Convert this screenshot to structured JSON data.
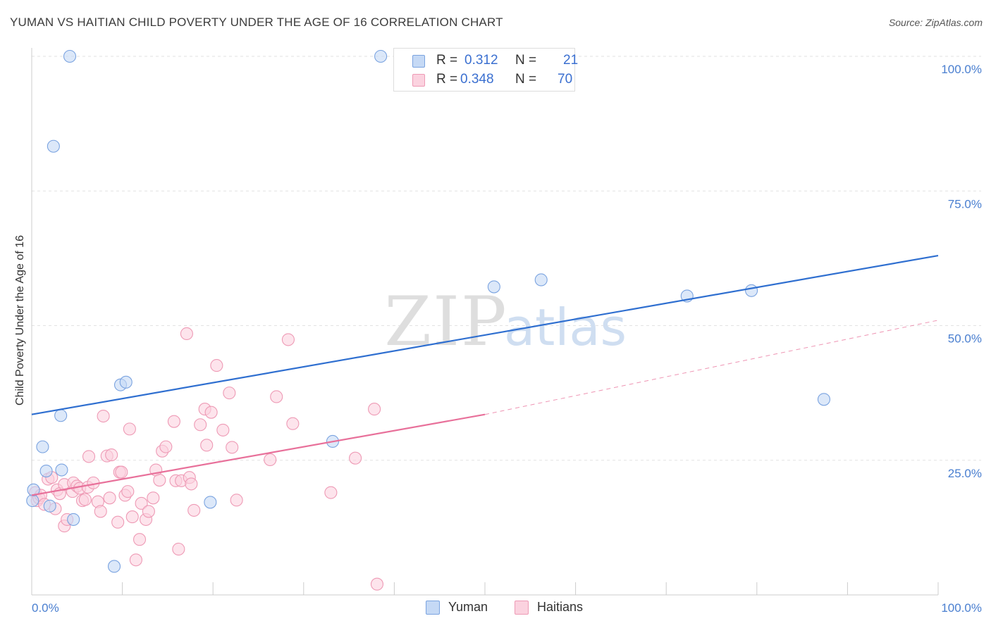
{
  "header": {
    "title": "YUMAN VS HAITIAN CHILD POVERTY UNDER THE AGE OF 16 CORRELATION CHART",
    "source": "Source: ZipAtlas.com"
  },
  "watermark": {
    "zip": "ZIP",
    "atlas": "atlas"
  },
  "legend": {
    "r_label": "R =",
    "n_label": "N =",
    "series": [
      {
        "name": "Yuman",
        "r": "0.312",
        "n": "21"
      },
      {
        "name": "Haitians",
        "r": "0.348",
        "n": "70"
      }
    ]
  },
  "colors": {
    "yuman_fill": "#c5d9f5",
    "yuman_stroke": "#7aa3e0",
    "yuman_line": "#2f6fd0",
    "haitians_fill": "#fbd2df",
    "haitians_stroke": "#ee9ab5",
    "haitians_line": "#e8709a",
    "grid": "#e2e2e2",
    "axis_text": "#4a7fd0"
  },
  "chart_data": {
    "type": "scatter",
    "title": "YUMAN VS HAITIAN CHILD POVERTY UNDER THE AGE OF 16 CORRELATION CHART",
    "xlabel": "",
    "ylabel": "Child Poverty Under the Age of 16",
    "xlim": [
      0,
      100
    ],
    "ylim": [
      0,
      100
    ],
    "x_tick_labels": [
      "0.0%",
      "100.0%"
    ],
    "y_tick_labels": [
      {
        "value": 25,
        "label": "25.0%"
      },
      {
        "value": 50,
        "label": "50.0%"
      },
      {
        "value": 75,
        "label": "75.0%"
      },
      {
        "value": 100,
        "label": "100.0%"
      }
    ],
    "series": [
      {
        "name": "Yuman",
        "r": 0.312,
        "n": 21,
        "trend": {
          "x": [
            0,
            100
          ],
          "y": [
            33.5,
            63.0
          ],
          "dashed_extension": false
        },
        "points": [
          [
            0.1,
            17.5
          ],
          [
            0.2,
            19.5
          ],
          [
            1.2,
            27.5
          ],
          [
            1.6,
            23.0
          ],
          [
            2.0,
            16.5
          ],
          [
            3.2,
            33.3
          ],
          [
            3.3,
            23.2
          ],
          [
            4.6,
            14.0
          ],
          [
            2.4,
            83.3
          ],
          [
            4.2,
            100.0
          ],
          [
            9.1,
            5.3
          ],
          [
            9.8,
            39.0
          ],
          [
            10.4,
            39.5
          ],
          [
            19.7,
            17.2
          ],
          [
            33.2,
            28.5
          ],
          [
            38.5,
            100.0
          ],
          [
            51.0,
            57.2
          ],
          [
            56.2,
            58.5
          ],
          [
            72.3,
            55.5
          ],
          [
            79.4,
            56.5
          ],
          [
            87.4,
            36.3
          ]
        ]
      },
      {
        "name": "Haitians",
        "r": 0.348,
        "n": 70,
        "trend": {
          "x": [
            0,
            50
          ],
          "y": [
            18.5,
            33.5
          ],
          "dashed_extension": true,
          "dashed_to": [
            100,
            51.0
          ]
        },
        "points": [
          [
            0.4,
            19.0
          ],
          [
            0.6,
            17.5
          ],
          [
            0.8,
            18.0
          ],
          [
            1.0,
            18.5
          ],
          [
            1.4,
            16.8
          ],
          [
            1.8,
            21.5
          ],
          [
            2.2,
            21.8
          ],
          [
            2.6,
            16.0
          ],
          [
            2.8,
            19.5
          ],
          [
            3.1,
            18.8
          ],
          [
            3.6,
            20.5
          ],
          [
            3.6,
            12.8
          ],
          [
            3.9,
            14.0
          ],
          [
            4.5,
            19.2
          ],
          [
            4.6,
            20.8
          ],
          [
            5.0,
            20.2
          ],
          [
            5.3,
            19.8
          ],
          [
            5.6,
            17.5
          ],
          [
            5.9,
            17.7
          ],
          [
            6.2,
            20.0
          ],
          [
            6.3,
            25.7
          ],
          [
            6.8,
            20.8
          ],
          [
            7.3,
            17.3
          ],
          [
            7.6,
            15.5
          ],
          [
            7.9,
            33.2
          ],
          [
            8.3,
            25.8
          ],
          [
            8.6,
            18.0
          ],
          [
            8.8,
            26.0
          ],
          [
            9.5,
            13.5
          ],
          [
            9.7,
            22.8
          ],
          [
            9.9,
            22.8
          ],
          [
            10.3,
            18.5
          ],
          [
            10.6,
            19.2
          ],
          [
            10.8,
            30.8
          ],
          [
            11.1,
            14.5
          ],
          [
            11.5,
            6.5
          ],
          [
            11.9,
            10.3
          ],
          [
            12.1,
            17.0
          ],
          [
            12.6,
            14.0
          ],
          [
            12.9,
            15.5
          ],
          [
            13.4,
            18.0
          ],
          [
            13.7,
            23.2
          ],
          [
            14.1,
            21.3
          ],
          [
            14.4,
            26.7
          ],
          [
            14.8,
            27.5
          ],
          [
            15.7,
            32.2
          ],
          [
            15.9,
            21.2
          ],
          [
            16.2,
            8.5
          ],
          [
            16.5,
            21.2
          ],
          [
            17.1,
            48.5
          ],
          [
            17.4,
            21.8
          ],
          [
            17.6,
            20.6
          ],
          [
            17.9,
            15.7
          ],
          [
            18.6,
            31.6
          ],
          [
            19.1,
            34.5
          ],
          [
            19.3,
            27.8
          ],
          [
            19.8,
            33.9
          ],
          [
            20.4,
            42.6
          ],
          [
            21.1,
            30.6
          ],
          [
            21.8,
            37.5
          ],
          [
            22.1,
            27.4
          ],
          [
            22.6,
            17.6
          ],
          [
            26.3,
            25.1
          ],
          [
            27.0,
            36.8
          ],
          [
            28.3,
            47.4
          ],
          [
            28.8,
            31.8
          ],
          [
            33.0,
            19.0
          ],
          [
            35.7,
            25.4
          ],
          [
            37.8,
            34.5
          ],
          [
            38.1,
            2.0
          ]
        ]
      }
    ],
    "legend_position": "top-center",
    "grid": true
  }
}
